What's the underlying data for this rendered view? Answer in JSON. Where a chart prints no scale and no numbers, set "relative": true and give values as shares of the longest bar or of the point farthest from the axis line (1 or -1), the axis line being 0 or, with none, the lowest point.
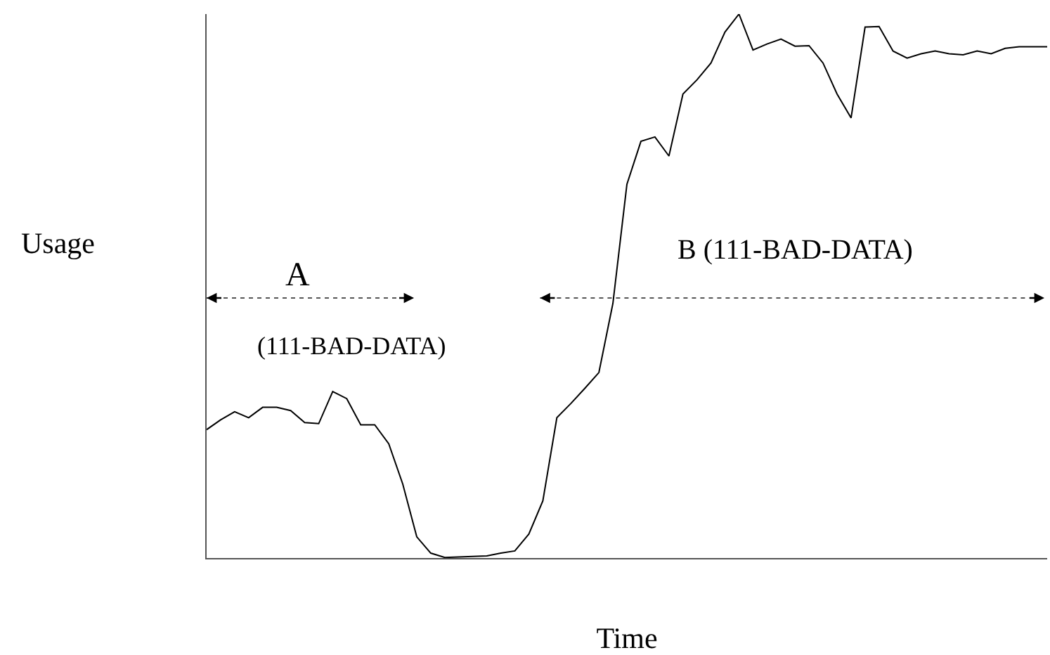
{
  "chart_data": {
    "type": "line",
    "relative": true,
    "xlabel": "Time",
    "ylabel": "Usage",
    "categories": [
      null,
      null,
      null,
      null,
      null,
      null,
      null,
      null,
      null,
      null,
      null,
      null,
      null,
      null,
      null,
      null,
      null,
      null,
      null,
      null,
      null,
      null,
      null,
      null,
      null,
      null,
      null,
      null,
      null,
      null,
      null,
      null,
      null,
      null,
      null,
      null,
      null,
      null,
      null,
      null,
      null,
      null,
      null,
      null,
      null,
      null,
      null,
      null,
      null,
      null,
      null,
      null,
      null,
      null,
      null,
      null,
      null,
      null,
      null,
      null,
      null
    ],
    "series": [
      {
        "color": "#000000",
        "values": [
          0.236,
          0.254,
          0.269,
          0.258,
          0.277,
          0.277,
          0.271,
          0.249,
          0.247,
          0.306,
          0.293,
          0.245,
          0.245,
          0.21,
          0.136,
          0.039,
          0.009,
          0.001,
          0.002,
          0.003,
          0.004,
          0.009,
          0.013,
          0.044,
          0.105,
          0.258,
          0.284,
          0.312,
          0.341,
          0.468,
          0.687,
          0.766,
          0.774,
          0.739,
          0.853,
          0.879,
          0.91,
          0.967,
          1.0,
          0.934,
          0.945,
          0.954,
          0.941,
          0.942,
          0.91,
          0.853,
          0.809,
          0.976,
          0.977,
          0.932,
          0.919,
          0.927,
          0.932,
          0.927,
          0.925,
          0.932,
          0.927,
          0.937,
          0.94,
          0.94,
          0.94
        ]
      }
    ],
    "annotations": [
      "A",
      "(111-BAD-DATA)",
      "B (111-BAD-DATA)"
    ]
  }
}
